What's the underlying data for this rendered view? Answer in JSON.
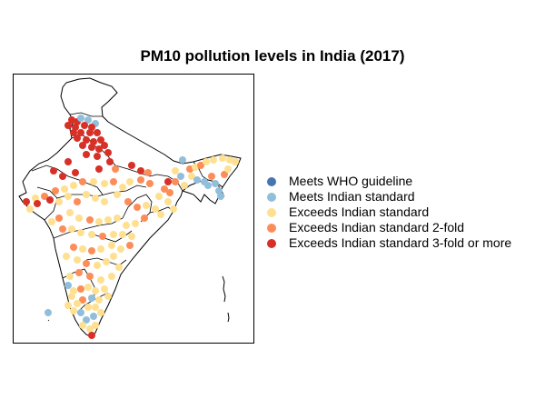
{
  "title": "PM10 pollution levels in India (2017)",
  "legend": {
    "items": [
      {
        "label": "Meets WHO guideline",
        "color": "#4575b4"
      },
      {
        "label": "Meets Indian standard",
        "color": "#91bfdb"
      },
      {
        "label": "Exceeds Indian standard",
        "color": "#fee090"
      },
      {
        "label": "Exceeds Indian standard 2-fold",
        "color": "#fc8d59"
      },
      {
        "label": "Exceeds Indian standard 3-fold or more",
        "color": "#d73027"
      }
    ]
  },
  "map": {
    "region": "India",
    "projection": "lon-lat",
    "lon_range": [
      68.0,
      98.0
    ],
    "lat_range": [
      6.5,
      37.5
    ],
    "stations_shown": "approximate sample of monitoring stations"
  }
}
